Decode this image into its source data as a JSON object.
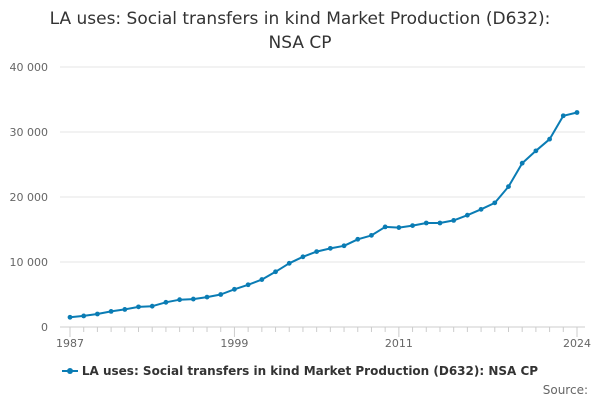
{
  "chart_data": {
    "type": "line",
    "title_lines": [
      "LA uses: Social transfers in kind Market Production (D632):",
      "NSA CP"
    ],
    "xlabel": "",
    "ylabel": "",
    "xlim": [
      1987,
      2024
    ],
    "ylim": [
      0,
      40000
    ],
    "y_ticks": [
      0,
      10000,
      20000,
      30000,
      40000
    ],
    "y_tick_labels": [
      "0",
      "10 000",
      "20 000",
      "30 000",
      "40 000"
    ],
    "x_tick_labels": [
      "1987",
      "1999",
      "2011",
      "2024"
    ],
    "x_ticks": [
      1987,
      1999,
      2011,
      2024
    ],
    "grid": "horizontal",
    "legend_position": "bottom",
    "series": [
      {
        "name": "LA uses: Social transfers in kind Market Production (D632): NSA CP",
        "color": "#0a7cb4",
        "x": [
          1987,
          1988,
          1989,
          1990,
          1991,
          1992,
          1993,
          1994,
          1995,
          1996,
          1997,
          1998,
          1999,
          2000,
          2001,
          2002,
          2003,
          2004,
          2005,
          2006,
          2007,
          2008,
          2009,
          2010,
          2011,
          2012,
          2013,
          2014,
          2015,
          2016,
          2017,
          2018,
          2019,
          2020,
          2021,
          2022,
          2023,
          2024
        ],
        "values": [
          1500,
          1700,
          2000,
          2400,
          2700,
          3100,
          3200,
          3800,
          4200,
          4300,
          4600,
          5000,
          5800,
          6500,
          7300,
          8500,
          9800,
          10800,
          11600,
          12100,
          12500,
          13500,
          14100,
          15400,
          15300,
          15600,
          16000,
          16000,
          16400,
          17200,
          18100,
          19100,
          21600,
          25200,
          27100,
          28900,
          32500,
          33000
        ]
      }
    ],
    "source_label": "Source:"
  }
}
